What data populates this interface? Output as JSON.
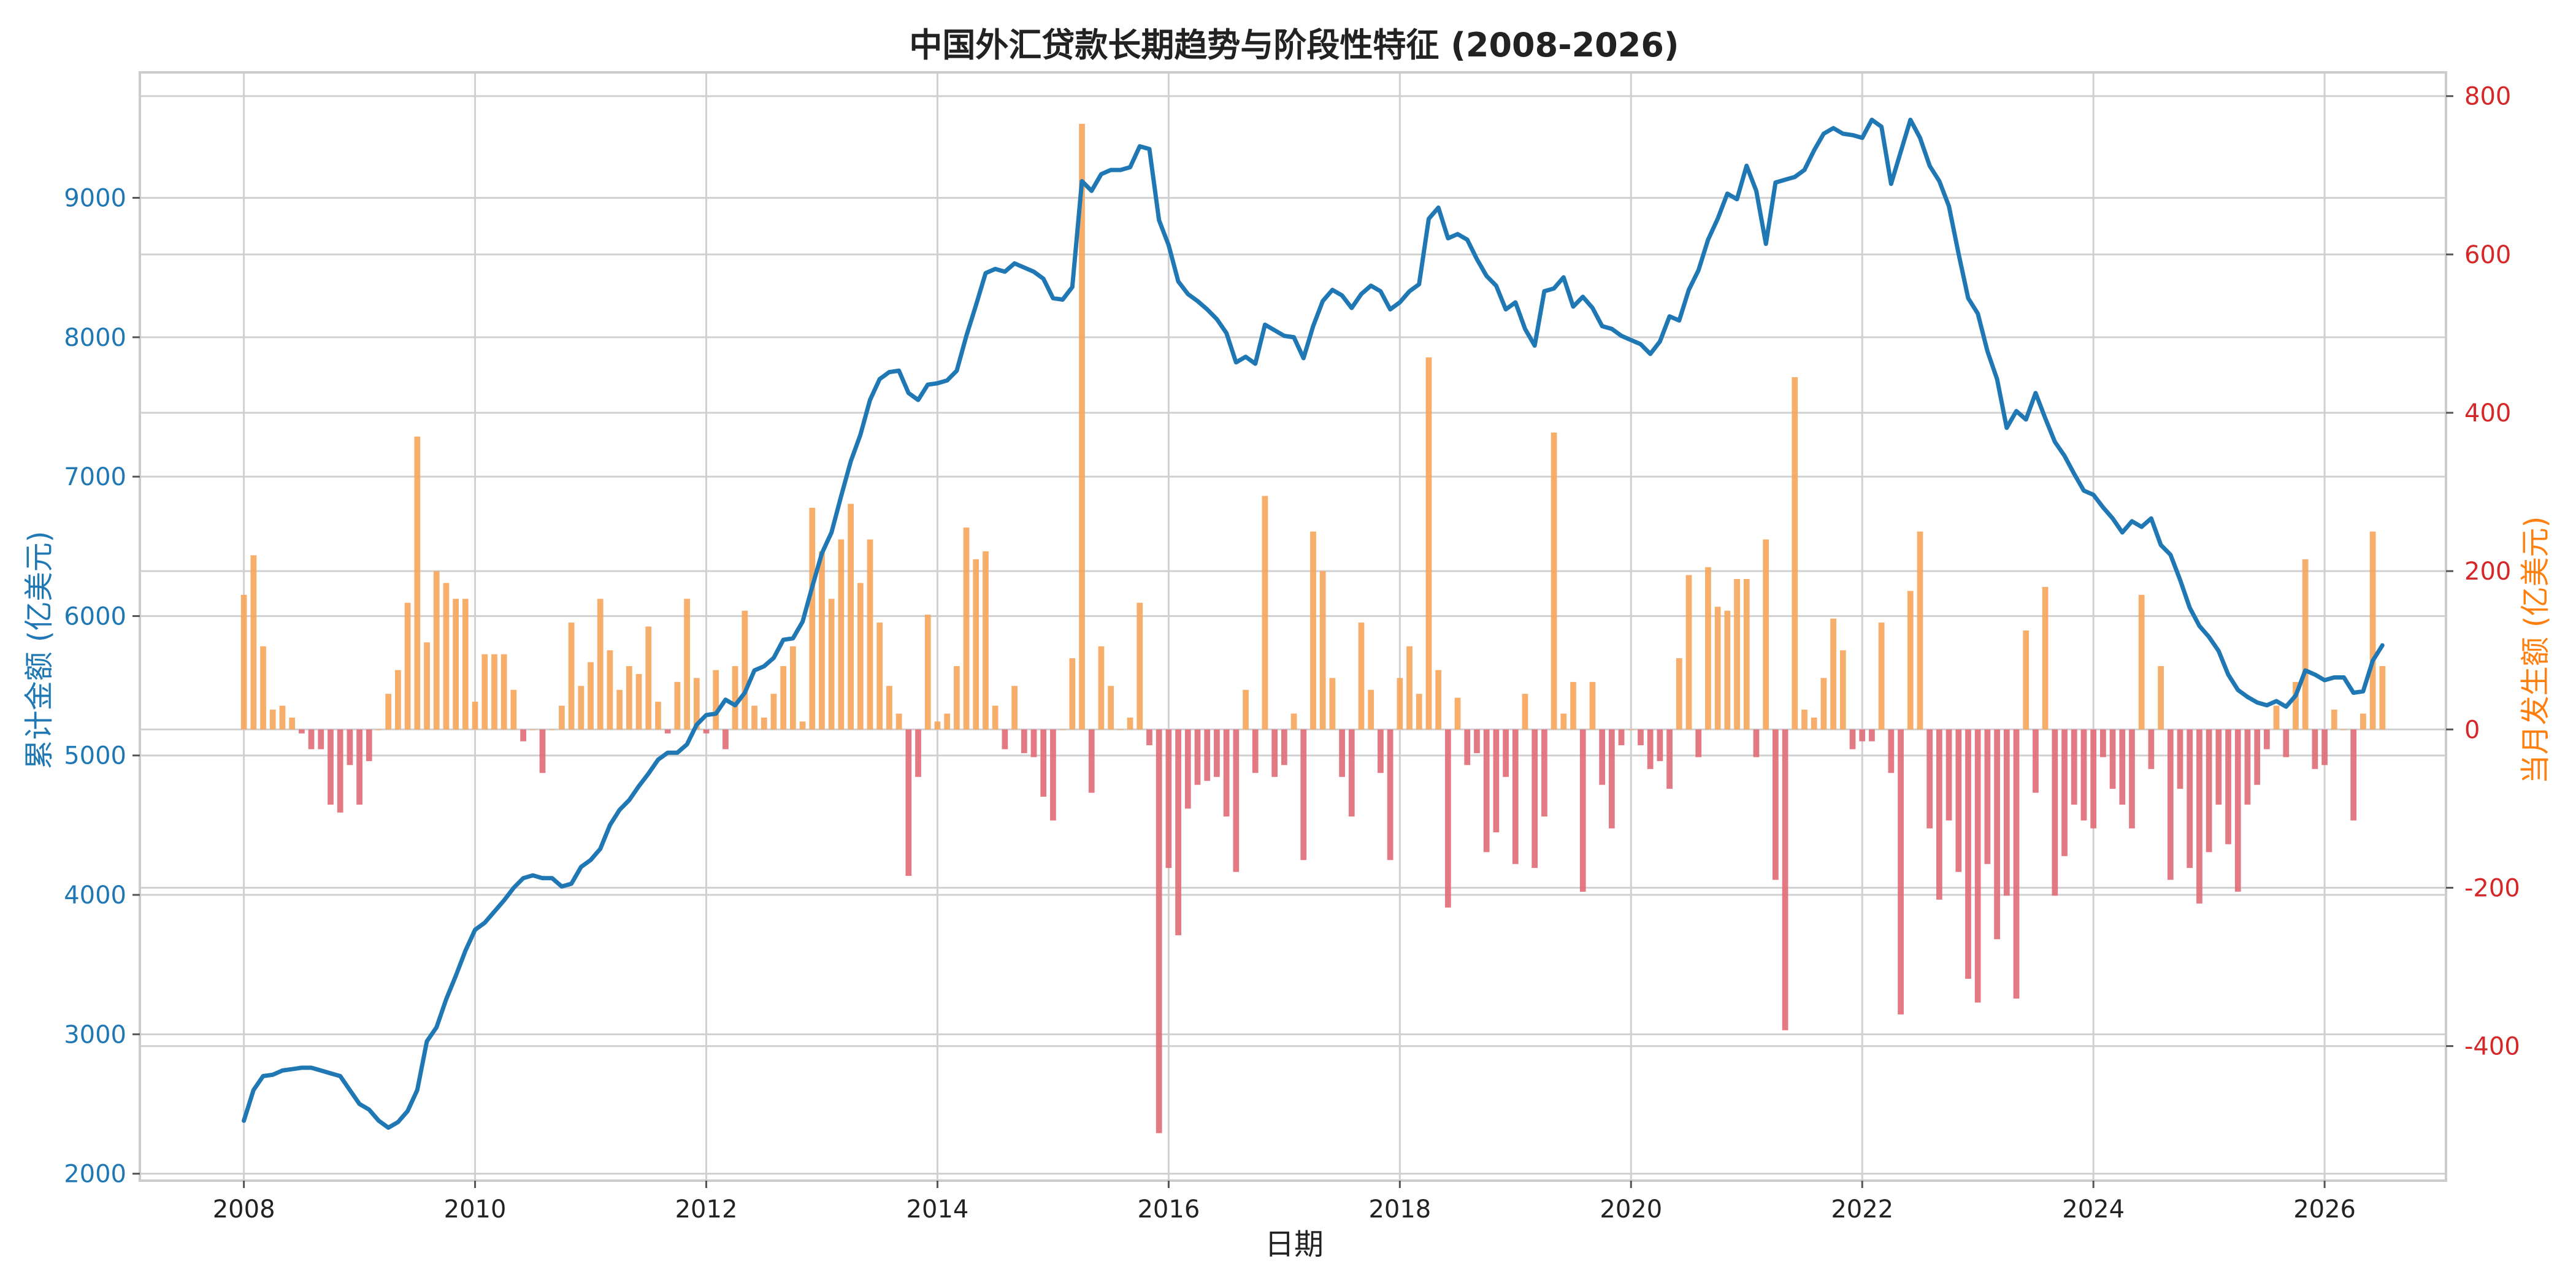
{
  "chart_data": {
    "type": "bar+line",
    "title": "中国外汇贷款长期趋势与阶段性特征 (2008-2026)",
    "xlabel": "日期",
    "ylabel_left": "累计金额 (亿美元)",
    "ylabel_right": "当月发生额 (亿美元)",
    "x_ticks": [
      "2008",
      "2010",
      "2012",
      "2014",
      "2016",
      "2018",
      "2020",
      "2022",
      "2024",
      "2026"
    ],
    "y_left_ticks": [
      "2000",
      "3000",
      "4000",
      "5000",
      "6000",
      "7000",
      "8000",
      "9000"
    ],
    "y_right_ticks": [
      "-400",
      "-200",
      "0",
      "200",
      "400",
      "600",
      "800"
    ],
    "x_range": [
      2007.1,
      2027.05
    ],
    "y_left_range": [
      1950,
      9900
    ],
    "y_right_range": [
      -570,
      830
    ],
    "grid": true,
    "colors": {
      "line": "#1f77b4",
      "bar_positive": "#f5a55a",
      "bar_negative": "#e06c75",
      "left_axis": "#1f77b4",
      "right_axis": "#d62728",
      "right_label": "#ff7f0e",
      "grid": "#d0d0d0",
      "frame": "#cccccc"
    },
    "series": [
      {
        "kind": "line",
        "axis": "left",
        "x_start": "2008-01",
        "step": "month",
        "values": [
          2380,
          2600,
          2700,
          2710,
          2740,
          2750,
          2760,
          2760,
          2740,
          2720,
          2700,
          2600,
          2500,
          2460,
          2380,
          2330,
          2370,
          2450,
          2600,
          2950,
          3050,
          3250,
          3420,
          3600,
          3750,
          3800,
          3880,
          3960,
          4050,
          4120,
          4140,
          4120,
          4120,
          4060,
          4080,
          4200,
          4250,
          4330,
          4500,
          4610,
          4680,
          4780,
          4870,
          4970,
          5020,
          5020,
          5080,
          5220,
          5290,
          5300,
          5400,
          5360,
          5450,
          5610,
          5640,
          5700,
          5830,
          5840,
          5960,
          6210,
          6450,
          6600,
          6860,
          7110,
          7300,
          7550,
          7700,
          7750,
          7760,
          7600,
          7550,
          7660,
          7670,
          7690,
          7760,
          8010,
          8230,
          8460,
          8490,
          8470,
          8530,
          8500,
          8470,
          8420,
          8280,
          8270,
          8360,
          9120,
          9050,
          9170,
          9200,
          9200,
          9220,
          9370,
          9350,
          8840,
          8660,
          8400,
          8310,
          8260,
          8200,
          8130,
          8030,
          7820,
          7860,
          7810,
          8090,
          8050,
          8010,
          8000,
          7850,
          8080,
          8260,
          8340,
          8300,
          8210,
          8310,
          8370,
          8330,
          8200,
          8250,
          8330,
          8380,
          8850,
          8930,
          8710,
          8740,
          8700,
          8560,
          8440,
          8370,
          8200,
          8250,
          8060,
          7940,
          8330,
          8350,
          8430,
          8220,
          8290,
          8210,
          8080,
          8060,
          8010,
          7980,
          7950,
          7880,
          7970,
          8150,
          8120,
          8340,
          8480,
          8700,
          8850,
          9030,
          8990,
          9230,
          9050,
          8670,
          9110,
          9130,
          9150,
          9200,
          9340,
          9460,
          9500,
          9460,
          9450,
          9430,
          9560,
          9510,
          9100,
          9330,
          9560,
          9430,
          9230,
          9120,
          8940,
          8600,
          8280,
          8170,
          7900,
          7700,
          7350,
          7470,
          7410,
          7600,
          7420,
          7250,
          7150,
          7020,
          6900,
          6870,
          6780,
          6700,
          6600,
          6680,
          6640,
          6700,
          6510,
          6440,
          6260,
          6060,
          5930,
          5850,
          5750,
          5580,
          5470,
          5420,
          5380,
          5360,
          5390,
          5350,
          5430,
          5610,
          5580,
          5540,
          5560,
          5560,
          5450,
          5460,
          5680,
          5790
        ]
      },
      {
        "kind": "bar",
        "axis": "right",
        "x_start": "2008-01",
        "step": "month",
        "values": [
          170,
          220,
          105,
          25,
          30,
          15,
          -5,
          -25,
          -25,
          -95,
          -105,
          -45,
          -95,
          -40,
          0,
          45,
          75,
          160,
          370,
          110,
          200,
          185,
          165,
          165,
          35,
          95,
          95,
          95,
          50,
          -15,
          0,
          -55,
          0,
          30,
          135,
          55,
          85,
          165,
          100,
          50,
          80,
          70,
          130,
          35,
          -5,
          60,
          165,
          65,
          -5,
          75,
          -25,
          80,
          150,
          30,
          15,
          45,
          80,
          105,
          10,
          280,
          225,
          165,
          240,
          285,
          185,
          240,
          135,
          55,
          20,
          -185,
          -60,
          145,
          10,
          20,
          80,
          255,
          215,
          225,
          30,
          -25,
          55,
          -30,
          -35,
          -85,
          -115,
          0,
          90,
          765,
          -80,
          105,
          55,
          0,
          15,
          160,
          -20,
          -510,
          -175,
          -260,
          -100,
          -70,
          -65,
          -60,
          -110,
          -180,
          50,
          -55,
          295,
          -60,
          -45,
          20,
          -165,
          250,
          200,
          65,
          -60,
          -110,
          135,
          50,
          -55,
          -165,
          65,
          105,
          45,
          470,
          75,
          -225,
          40,
          -45,
          -30,
          -155,
          -130,
          -60,
          -170,
          45,
          -175,
          -110,
          375,
          20,
          60,
          -205,
          60,
          -70,
          -125,
          -20,
          0,
          -20,
          -50,
          -40,
          -75,
          90,
          195,
          -35,
          205,
          155,
          150,
          190,
          190,
          -35,
          240,
          -190,
          -380,
          445,
          25,
          15,
          65,
          140,
          100,
          -25,
          -15,
          -15,
          135,
          -55,
          -360,
          175,
          250,
          -125,
          -215,
          -115,
          -180,
          -315,
          -345,
          -170,
          -265,
          -210,
          -340,
          125,
          -80,
          180,
          -210,
          -160,
          -95,
          -115,
          -125,
          -35,
          -75,
          -95,
          -125,
          170,
          -50,
          80,
          -190,
          -75,
          -175,
          -220,
          -155,
          -95,
          -145,
          -205,
          -95,
          -70,
          -25,
          30,
          -35,
          60,
          215,
          -50,
          -45,
          25,
          0,
          -115,
          20,
          250,
          80
        ]
      }
    ]
  }
}
